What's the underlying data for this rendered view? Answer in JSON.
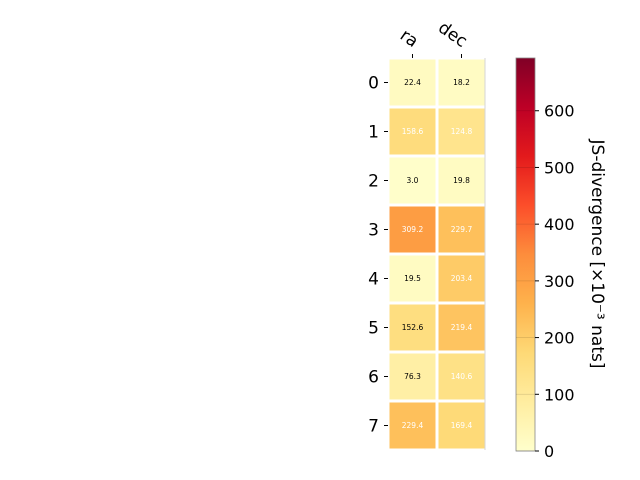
{
  "chart_data": {
    "type": "heatmap",
    "columns": [
      "ra",
      "dec"
    ],
    "rows": [
      "0",
      "1",
      "2",
      "3",
      "4",
      "5",
      "6",
      "7"
    ],
    "values": [
      [
        22.4,
        18.2
      ],
      [
        158.6,
        124.8
      ],
      [
        3.0,
        19.8
      ],
      [
        309.2,
        229.7
      ],
      [
        19.5,
        203.4
      ],
      [
        152.6,
        219.4
      ],
      [
        76.3,
        140.6
      ],
      [
        229.4,
        169.4
      ]
    ],
    "value_labels": [
      [
        "22.4",
        "18.2"
      ],
      [
        "158.6",
        "124.8"
      ],
      [
        "3.0",
        "19.8"
      ],
      [
        "309.2",
        "229.7"
      ],
      [
        "19.5",
        "203.4"
      ],
      [
        "152.6",
        "219.4"
      ],
      [
        "76.3",
        "140.6"
      ],
      [
        "229.4",
        "169.4"
      ]
    ],
    "colorbar": {
      "label": "JS-divergence [×10⁻³ nats]",
      "range": [
        0,
        693
      ],
      "ticks": [
        0,
        100,
        200,
        300,
        400,
        500,
        600
      ],
      "colormap": "YlOrRd"
    },
    "grid": false
  }
}
